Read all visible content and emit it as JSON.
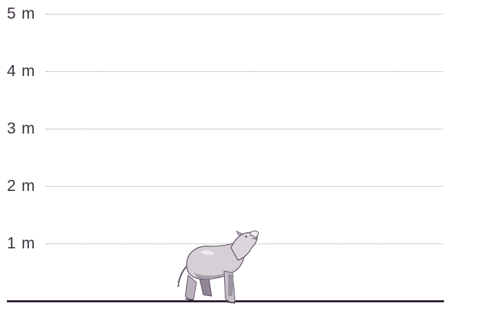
{
  "scale": {
    "ticks": [
      {
        "value": 5,
        "label": "5 m"
      },
      {
        "value": 4,
        "label": "4 m"
      },
      {
        "value": 3,
        "label": "3 m"
      },
      {
        "value": 2,
        "label": "2 m"
      },
      {
        "value": 1,
        "label": "1 m"
      }
    ],
    "max": 5,
    "unit": "m"
  },
  "animal": {
    "icon": "rhino-like-mammal-icon",
    "height_m": 1.2
  },
  "colors": {
    "ground": "#2e1d33",
    "grid": "#9c9598",
    "label": "#3d3340",
    "animal_fill": "#cfc9cf",
    "animal_shade": "#8f8595"
  }
}
